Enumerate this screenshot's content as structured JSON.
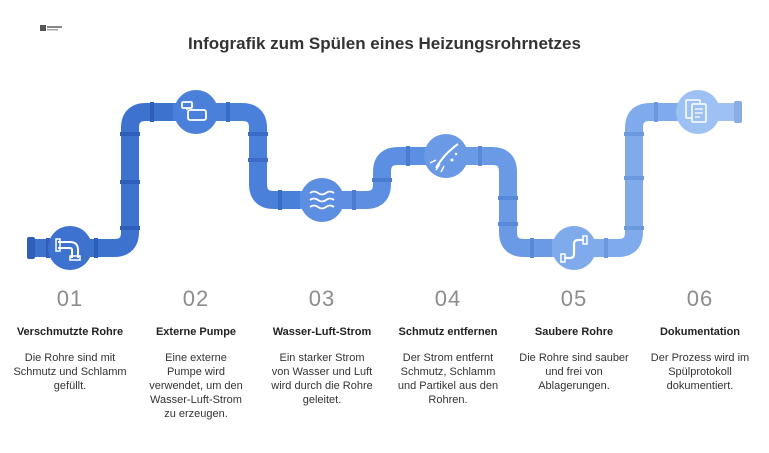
{
  "title": "Infografik zum Spülen eines Heizungsrohrnetzes",
  "colors": {
    "pipe_1": "#3e72cf",
    "pipe_2": "#4a80d9",
    "pipe_3": "#5c8fe2",
    "pipe_4": "#6a9ae6",
    "pipe_5": "#7fabed",
    "pipe_6": "#9dc1f3"
  },
  "steps": [
    {
      "number": "01",
      "title": "Verschmutzte Rohre",
      "description": "Die Rohre sind mit Schmutz und Schlamm gefüllt.",
      "icon": "pipe-icon"
    },
    {
      "number": "02",
      "title": "Externe Pumpe",
      "description": "Eine externe Pumpe wird verwendet, um den Wasser-Luft-Strom zu erzeugen.",
      "icon": "pump-icon"
    },
    {
      "number": "03",
      "title": "Wasser-Luft-Strom",
      "description": "Ein starker Strom von Wasser und Luft wird durch die Rohre geleitet.",
      "icon": "wind-waves-icon"
    },
    {
      "number": "04",
      "title": "Schmutz entfernen",
      "description": "Der Strom entfernt Schmutz, Schlamm und Partikel aus den Rohren.",
      "icon": "cleaning-icon"
    },
    {
      "number": "05",
      "title": "Saubere Rohre",
      "description": "Die Rohre sind sauber und frei von Ablagerungen.",
      "icon": "clean-pipe-icon"
    },
    {
      "number": "06",
      "title": "Dokumentation",
      "description": "Der Prozess wird im Spülprotokoll dokumentiert.",
      "icon": "documents-icon"
    }
  ]
}
